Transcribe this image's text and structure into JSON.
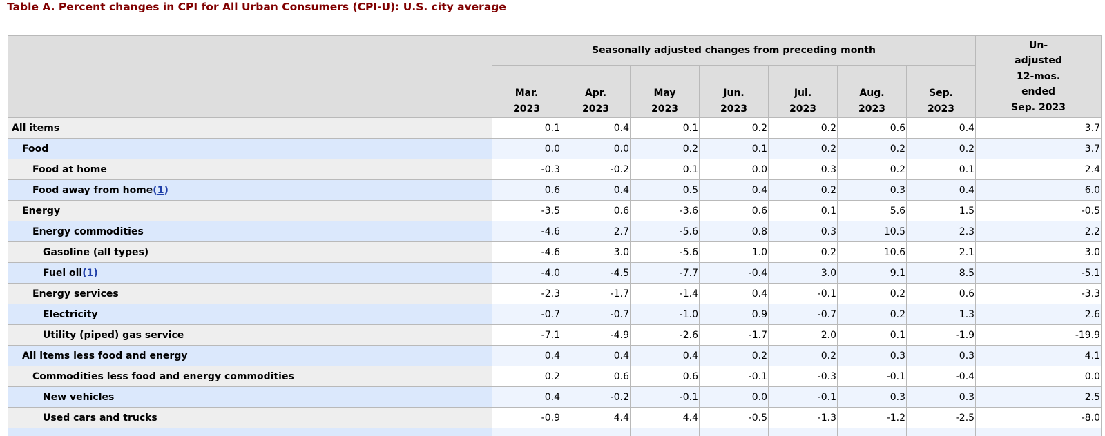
{
  "title": "Table A. Percent changes in CPI for All Urban Consumers (CPI-U): U.S. city average",
  "header": {
    "group_label": "Seasonally adjusted changes from preceding month",
    "unadjusted_lines": [
      "Un-",
      "adjusted",
      "12-mos.",
      "ended",
      "Sep. 2023"
    ],
    "months": [
      {
        "month": "Mar.",
        "year": "2023"
      },
      {
        "month": "Apr.",
        "year": "2023"
      },
      {
        "month": "May",
        "year": "2023"
      },
      {
        "month": "Jun.",
        "year": "2023"
      },
      {
        "month": "Jul.",
        "year": "2023"
      },
      {
        "month": "Aug.",
        "year": "2023"
      },
      {
        "month": "Sep.",
        "year": "2023"
      }
    ]
  },
  "rows": [
    {
      "label": "All items",
      "level": 0,
      "values": [
        "0.1",
        "0.4",
        "0.1",
        "0.2",
        "0.2",
        "0.6",
        "0.4",
        "3.7"
      ]
    },
    {
      "label": "Food",
      "level": 1,
      "values": [
        "0.0",
        "0.0",
        "0.2",
        "0.1",
        "0.2",
        "0.2",
        "0.2",
        "3.7"
      ]
    },
    {
      "label": "Food at home",
      "level": 2,
      "values": [
        "-0.3",
        "-0.2",
        "0.1",
        "0.0",
        "0.3",
        "0.2",
        "0.1",
        "2.4"
      ]
    },
    {
      "label": "Food away from home",
      "level": 2,
      "footnote": "1",
      "values": [
        "0.6",
        "0.4",
        "0.5",
        "0.4",
        "0.2",
        "0.3",
        "0.4",
        "6.0"
      ]
    },
    {
      "label": "Energy",
      "level": 1,
      "values": [
        "-3.5",
        "0.6",
        "-3.6",
        "0.6",
        "0.1",
        "5.6",
        "1.5",
        "-0.5"
      ]
    },
    {
      "label": "Energy commodities",
      "level": 2,
      "values": [
        "-4.6",
        "2.7",
        "-5.6",
        "0.8",
        "0.3",
        "10.5",
        "2.3",
        "2.2"
      ]
    },
    {
      "label": "Gasoline (all types)",
      "level": 3,
      "values": [
        "-4.6",
        "3.0",
        "-5.6",
        "1.0",
        "0.2",
        "10.6",
        "2.1",
        "3.0"
      ]
    },
    {
      "label": "Fuel oil",
      "level": 3,
      "footnote": "1",
      "values": [
        "-4.0",
        "-4.5",
        "-7.7",
        "-0.4",
        "3.0",
        "9.1",
        "8.5",
        "-5.1"
      ]
    },
    {
      "label": "Energy services",
      "level": 2,
      "values": [
        "-2.3",
        "-1.7",
        "-1.4",
        "0.4",
        "-0.1",
        "0.2",
        "0.6",
        "-3.3"
      ]
    },
    {
      "label": "Electricity",
      "level": 3,
      "values": [
        "-0.7",
        "-0.7",
        "-1.0",
        "0.9",
        "-0.7",
        "0.2",
        "1.3",
        "2.6"
      ]
    },
    {
      "label": "Utility (piped) gas service",
      "level": 3,
      "values": [
        "-7.1",
        "-4.9",
        "-2.6",
        "-1.7",
        "2.0",
        "0.1",
        "-1.9",
        "-19.9"
      ]
    },
    {
      "label": "All items less food and energy",
      "level": 1,
      "values": [
        "0.4",
        "0.4",
        "0.4",
        "0.2",
        "0.2",
        "0.3",
        "0.3",
        "4.1"
      ]
    },
    {
      "label": "Commodities less food and energy commodities",
      "level": 2,
      "values": [
        "0.2",
        "0.6",
        "0.6",
        "-0.1",
        "-0.3",
        "-0.1",
        "-0.4",
        "0.0"
      ]
    },
    {
      "label": "New vehicles",
      "level": 3,
      "values": [
        "0.4",
        "-0.2",
        "-0.1",
        "0.0",
        "-0.1",
        "0.3",
        "0.3",
        "2.5"
      ]
    },
    {
      "label": "Used cars and trucks",
      "level": 3,
      "values": [
        "-0.9",
        "4.4",
        "4.4",
        "-0.5",
        "-1.3",
        "-1.2",
        "-2.5",
        "-8.0"
      ]
    }
  ],
  "colors": {
    "title": "#800000",
    "header_bg": "#dedede",
    "row_label_light": "#eeeeee",
    "row_label_blue": "#dbe8fc",
    "row_value_blue": "#eef4fe",
    "footnote_link": "#1e3ea8",
    "border": "#b9b9b9"
  }
}
